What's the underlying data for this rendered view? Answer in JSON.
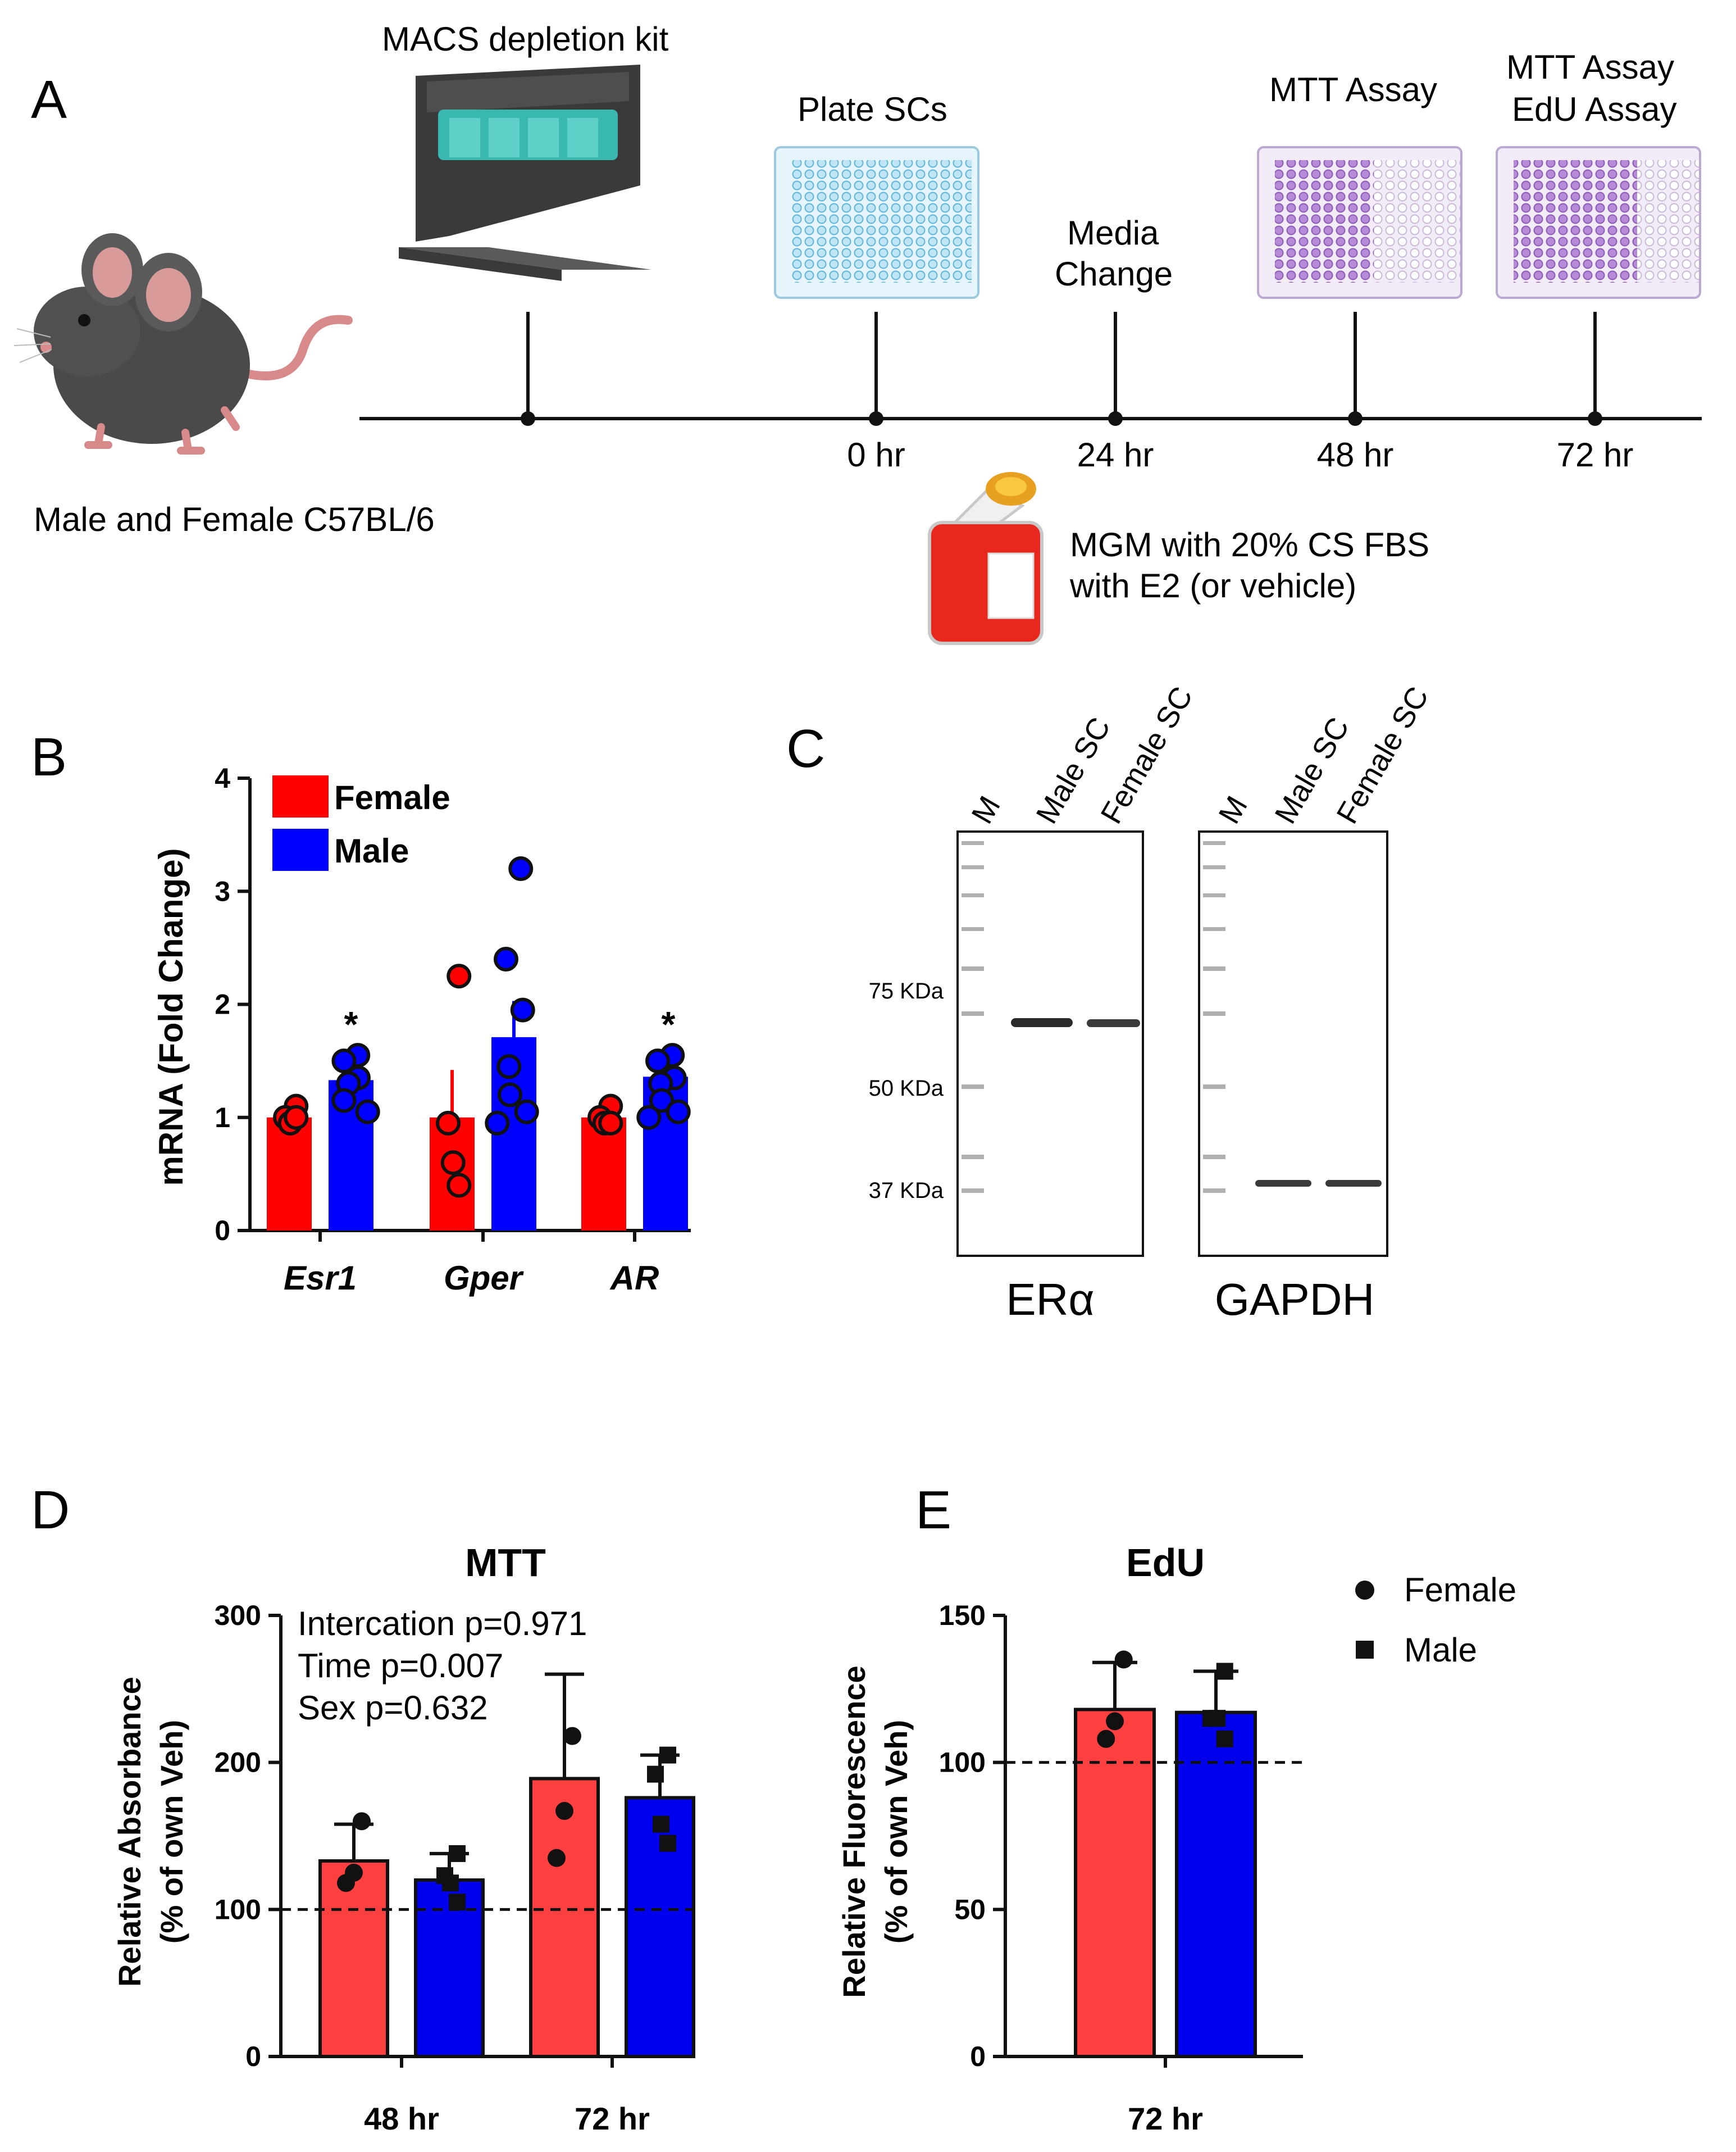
{
  "panels": {
    "a": "A",
    "b": "B",
    "c": "C",
    "d": "D",
    "e": "E"
  },
  "panel_a": {
    "mouse_label": "Male and Female C57BL/6",
    "macs_label": "MACS depletion kit",
    "plate_label": "Plate SCs",
    "media_label_1": "Media",
    "media_label_2": "Change",
    "mtt_label": "MTT Assay",
    "mtt_label_2": "MTT Assay",
    "edu_label": "EdU Assay",
    "times": [
      "0 hr",
      "24 hr",
      "48 hr",
      "72 hr"
    ],
    "medium_line_1": "MGM with 20% CS FBS",
    "medium_line_2": "with E2 (or vehicle)",
    "colors": {
      "plate_blue": "#a9d8ec",
      "plate_purple": "#b68ad6",
      "flask_red": "#e8281e",
      "kit_teal": "#39b8b0",
      "mouse": "#4a4a4a"
    }
  },
  "panel_c": {
    "lanes_left": [
      "M",
      "Male SC",
      "Female SC"
    ],
    "lanes_right": [
      "M",
      "Male SC",
      "Female SC"
    ],
    "markers": [
      "75 KDa",
      "50 KDa",
      "37 KDa"
    ],
    "blot_left": "ERα",
    "blot_right": "GAPDH"
  },
  "colors": {
    "female": "#ff0000",
    "male": "#0000ff",
    "female_light": "#ff4040",
    "male_dark": "#0000ee"
  },
  "chart_data": [
    {
      "id": "B",
      "type": "bar",
      "ylabel": "mRNA (Fold Change)",
      "ylim": [
        0,
        4
      ],
      "yticks": [
        0,
        1,
        2,
        3,
        4
      ],
      "categories": [
        "Esr1",
        "Gper",
        "AR"
      ],
      "legend": [
        "Female",
        "Male"
      ],
      "series": [
        {
          "name": "Female",
          "values": [
            1.0,
            1.0,
            1.0
          ],
          "errors": [
            0.05,
            0.42,
            0.05
          ],
          "points": [
            [
              1.1,
              1.0,
              0.95,
              1.0
            ],
            [
              2.25,
              0.95,
              0.6,
              0.4
            ],
            [
              1.1,
              1.0,
              0.95,
              0.95
            ]
          ]
        },
        {
          "name": "Male",
          "values": [
            1.33,
            1.71,
            1.36
          ],
          "errors": [
            0.1,
            0.32,
            0.08
          ],
          "points": [
            [
              1.55,
              1.5,
              1.35,
              1.3,
              1.15,
              1.05
            ],
            [
              3.2,
              2.4,
              1.95,
              1.45,
              1.2,
              1.05,
              0.95
            ],
            [
              1.55,
              1.5,
              1.35,
              1.3,
              1.15,
              1.05,
              1.0
            ]
          ]
        }
      ],
      "annotations": [
        "*",
        "*"
      ],
      "annotation_categories": [
        "Esr1",
        "AR"
      ]
    },
    {
      "id": "D",
      "type": "bar",
      "title": "MTT",
      "ylabel_1": "Relative Absorbance",
      "ylabel_2": "(% of own Veh)",
      "ylim": [
        0,
        300
      ],
      "yticks": [
        0,
        100,
        200,
        300
      ],
      "reference_line": 100,
      "categories": [
        "48 hr",
        "72 hr"
      ],
      "stats": [
        "Intercation p=0.971",
        "Time p=0.007",
        "Sex p=0.632"
      ],
      "series": [
        {
          "name": "Female",
          "values": [
            133,
            189
          ],
          "errors": [
            25,
            71
          ],
          "points": [
            [
              160,
              125,
              118
            ],
            [
              218,
              167,
              135
            ]
          ]
        },
        {
          "name": "Male",
          "values": [
            120,
            176
          ],
          "errors": [
            18,
            29
          ],
          "points": [
            [
              138,
              123,
              118,
              105
            ],
            [
              205,
              192,
              158,
              145
            ]
          ]
        }
      ]
    },
    {
      "id": "E",
      "type": "bar",
      "title": "EdU",
      "ylabel_1": "Relative Fluorescence",
      "ylabel_2": "(% of own Veh)",
      "ylim": [
        0,
        150
      ],
      "yticks": [
        0,
        50,
        100,
        150
      ],
      "reference_line": 100,
      "categories": [
        "72 hr"
      ],
      "legend": [
        "Female",
        "Male"
      ],
      "series": [
        {
          "name": "Female",
          "values": [
            118
          ],
          "errors": [
            16
          ],
          "points": [
            [
              135,
              114,
              108
            ]
          ]
        },
        {
          "name": "Male",
          "values": [
            117
          ],
          "errors": [
            14
          ],
          "points": [
            [
              131,
              115,
              115,
              108
            ]
          ]
        }
      ]
    }
  ]
}
